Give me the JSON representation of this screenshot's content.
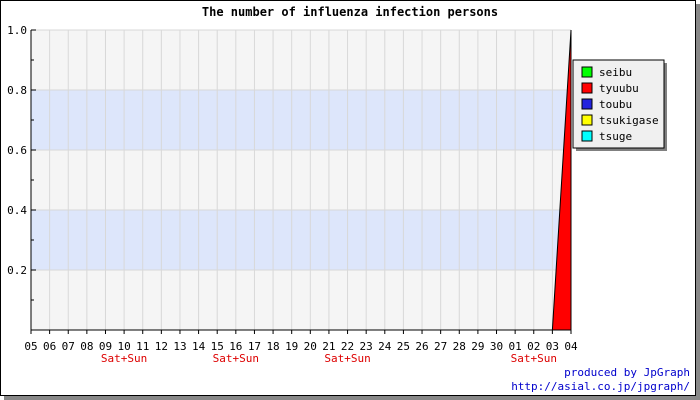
{
  "chart_data": {
    "type": "area",
    "title": "The number of influenza infection persons",
    "categories": [
      "05",
      "06",
      "07",
      "08",
      "09",
      "10",
      "11",
      "12",
      "13",
      "14",
      "15",
      "16",
      "17",
      "18",
      "19",
      "20",
      "21",
      "22",
      "23",
      "24",
      "25",
      "26",
      "27",
      "28",
      "29",
      "30",
      "01",
      "02",
      "03",
      "04"
    ],
    "weekend_markers": [
      {
        "category": "10",
        "label": "Sat+Sun"
      },
      {
        "category": "16",
        "label": "Sat+Sun"
      },
      {
        "category": "22",
        "label": "Sat+Sun"
      },
      {
        "category": "02",
        "label": "Sat+Sun"
      }
    ],
    "yticks": [
      "0.2",
      "0.4",
      "0.6",
      "0.8",
      "1.0"
    ],
    "ylim": [
      0,
      1.0
    ],
    "grid": true,
    "bands": [
      [
        0.2,
        0.4
      ],
      [
        0.6,
        0.8
      ]
    ],
    "legend_position": "right",
    "series": [
      {
        "name": "seibu",
        "color": "#00ff00",
        "values": [
          0,
          0,
          0,
          0,
          0,
          0,
          0,
          0,
          0,
          0,
          0,
          0,
          0,
          0,
          0,
          0,
          0,
          0,
          0,
          0,
          0,
          0,
          0,
          0,
          0,
          0,
          0,
          0,
          0,
          0
        ]
      },
      {
        "name": "tyuubu",
        "color": "#ff0000",
        "values": [
          0,
          0,
          0,
          0,
          0,
          0,
          0,
          0,
          0,
          0,
          0,
          0,
          0,
          0,
          0,
          0,
          0,
          0,
          0,
          0,
          0,
          0,
          0,
          0,
          0,
          0,
          0,
          0,
          0,
          1
        ]
      },
      {
        "name": "toubu",
        "color": "#2222dd",
        "values": [
          0,
          0,
          0,
          0,
          0,
          0,
          0,
          0,
          0,
          0,
          0,
          0,
          0,
          0,
          0,
          0,
          0,
          0,
          0,
          0,
          0,
          0,
          0,
          0,
          0,
          0,
          0,
          0,
          0,
          0
        ]
      },
      {
        "name": "tsukigase",
        "color": "#ffff00",
        "values": [
          0,
          0,
          0,
          0,
          0,
          0,
          0,
          0,
          0,
          0,
          0,
          0,
          0,
          0,
          0,
          0,
          0,
          0,
          0,
          0,
          0,
          0,
          0,
          0,
          0,
          0,
          0,
          0,
          0,
          0
        ]
      },
      {
        "name": "tsuge",
        "color": "#00ffff",
        "values": [
          0,
          0,
          0,
          0,
          0,
          0,
          0,
          0,
          0,
          0,
          0,
          0,
          0,
          0,
          0,
          0,
          0,
          0,
          0,
          0,
          0,
          0,
          0,
          0,
          0,
          0,
          0,
          0,
          0,
          0
        ]
      }
    ]
  },
  "credits": {
    "line1": "produced by JpGraph",
    "line2": "http://asial.co.jp/jpgraph/"
  }
}
